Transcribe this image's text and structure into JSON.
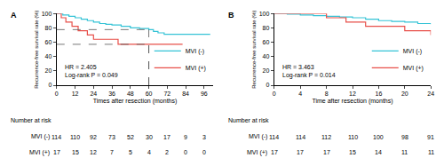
{
  "chart_data": [
    {
      "type": "line",
      "line_style": "step",
      "title": "A",
      "x_label": "Times after resection (months)",
      "y_label": "Recurrence-free survival rate (%)",
      "xlim": [
        0,
        102
      ],
      "ylim": [
        0,
        100
      ],
      "xticks": [
        0,
        12,
        24,
        36,
        48,
        60,
        72,
        84,
        96
      ],
      "yticks": [
        0,
        20,
        40,
        60,
        80,
        100
      ],
      "grid": false,
      "legend": "lower right",
      "series": [
        {
          "name": "MVI (-)",
          "color": "#35c3d6",
          "x": [
            0,
            4,
            8,
            12,
            16,
            20,
            24,
            28,
            32,
            36,
            42,
            48,
            54,
            60,
            63,
            66,
            70,
            100
          ],
          "values": [
            100,
            98,
            96,
            94,
            92,
            90,
            88,
            86,
            85,
            84,
            82,
            80,
            79,
            77.5,
            75,
            73,
            71,
            71
          ]
        },
        {
          "name": "MVI (+)",
          "color": "#e8504a",
          "x": [
            0,
            3,
            6,
            10,
            14,
            20,
            24,
            40,
            82
          ],
          "values": [
            100,
            94,
            88,
            82,
            76,
            70,
            64,
            57,
            57
          ]
        }
      ],
      "annotations": [
        {
          "text": [
            "HR = 2.405",
            "Log-rank P = 0.049"
          ]
        }
      ],
      "guides": [
        {
          "x": 60,
          "y": 77.5
        },
        {
          "x": 60,
          "y": 57
        }
      ],
      "risk_table": {
        "title": "Number at risk",
        "x": [
          0,
          12,
          24,
          36,
          48,
          60,
          72,
          84,
          96
        ],
        "rows": [
          {
            "name": "MVI (-)",
            "values": [
              114,
              110,
              92,
              73,
              52,
              30,
              17,
              9,
              3
            ]
          },
          {
            "name": "MVI (+)",
            "values": [
              17,
              15,
              12,
              7,
              5,
              4,
              2,
              0,
              0
            ]
          }
        ]
      }
    },
    {
      "type": "line",
      "line_style": "step",
      "title": "B",
      "x_label": "Time after resection (months)",
      "y_label": "Recurrence-free survival rate (%)",
      "xlim": [
        0,
        24
      ],
      "ylim": [
        0,
        100
      ],
      "xticks": [
        0,
        4,
        8,
        12,
        16,
        20,
        24
      ],
      "yticks": [
        0,
        20,
        40,
        60,
        80,
        100
      ],
      "grid": false,
      "legend": "lower right",
      "series": [
        {
          "name": "MVI (-)",
          "color": "#35c3d6",
          "x": [
            0,
            2,
            4,
            6,
            8,
            10,
            12,
            14,
            16,
            18,
            20,
            22,
            24
          ],
          "values": [
            100,
            99,
            98,
            97,
            96,
            95,
            94,
            92,
            90,
            89,
            88,
            86,
            85
          ]
        },
        {
          "name": "MVI (+)",
          "color": "#e8504a",
          "x": [
            0,
            8,
            11,
            14,
            17,
            20,
            24
          ],
          "values": [
            100,
            94,
            88,
            82,
            82,
            76,
            70
          ]
        }
      ],
      "annotations": [
        {
          "text": [
            "HR = 3.463",
            "Log-rank P = 0.014"
          ]
        }
      ],
      "risk_table": {
        "title": "Number at risk",
        "x": [
          0,
          4,
          8,
          12,
          16,
          20,
          24
        ],
        "rows": [
          {
            "name": "MVI (-)",
            "values": [
              114,
              114,
              112,
              110,
              100,
              98,
              91
            ]
          },
          {
            "name": "MVI (+)",
            "values": [
              17,
              17,
              17,
              15,
              14,
              11,
              11
            ]
          }
        ]
      }
    }
  ]
}
